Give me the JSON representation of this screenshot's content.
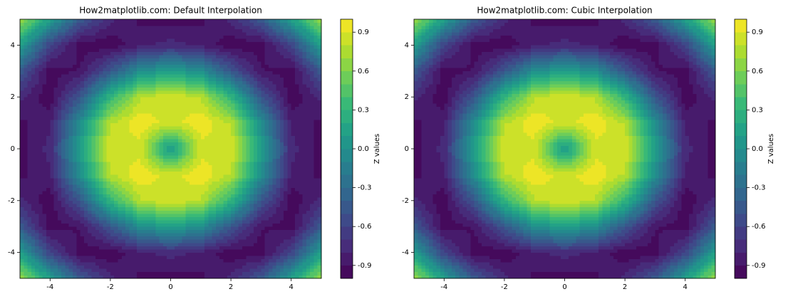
{
  "chart_data": [
    {
      "type": "contour",
      "title": "How2matplotlib.com: Default Interpolation",
      "x": [
        -5,
        -4,
        -3,
        -2,
        -1,
        0,
        1,
        2,
        3,
        4,
        5
      ],
      "y": [
        -5,
        -4,
        -3,
        -2,
        -1,
        0,
        1,
        2,
        3,
        4,
        5
      ],
      "z": [
        [
          0.706,
          0.119,
          -0.436,
          -0.78,
          -0.926,
          -0.959,
          -0.926,
          -0.78,
          -0.436,
          0.119,
          0.706
        ],
        [
          0.119,
          -0.588,
          -0.959,
          -0.971,
          -0.83,
          -0.757,
          -0.83,
          -0.971,
          -0.959,
          -0.588,
          0.119
        ],
        [
          -0.436,
          -0.959,
          -0.89,
          -0.448,
          -0.021,
          0.141,
          -0.021,
          -0.448,
          -0.89,
          -0.959,
          -0.436
        ],
        [
          -0.78,
          -0.971,
          -0.448,
          0.308,
          0.787,
          0.909,
          0.787,
          0.308,
          -0.448,
          -0.971,
          -0.78
        ],
        [
          -0.926,
          -0.83,
          -0.021,
          0.787,
          0.988,
          0.841,
          0.988,
          0.787,
          -0.021,
          -0.83,
          -0.926
        ],
        [
          -0.959,
          -0.757,
          0.141,
          0.909,
          0.841,
          0,
          0.841,
          0.909,
          0.141,
          -0.757,
          -0.959
        ],
        [
          -0.926,
          -0.83,
          -0.021,
          0.787,
          0.988,
          0.841,
          0.988,
          0.787,
          -0.021,
          -0.83,
          -0.926
        ],
        [
          -0.78,
          -0.971,
          -0.448,
          0.308,
          0.787,
          0.909,
          0.787,
          0.308,
          -0.448,
          -0.971,
          -0.78
        ],
        [
          -0.436,
          -0.959,
          -0.89,
          -0.448,
          -0.021,
          0.141,
          -0.021,
          -0.448,
          -0.89,
          -0.959,
          -0.436
        ],
        [
          0.119,
          -0.588,
          -0.959,
          -0.971,
          -0.83,
          -0.757,
          -0.83,
          -0.971,
          -0.959,
          -0.588,
          0.119
        ],
        [
          0.706,
          0.119,
          -0.436,
          -0.78,
          -0.926,
          -0.959,
          -0.926,
          -0.78,
          -0.436,
          0.119,
          0.706
        ]
      ],
      "xlim": [
        -5,
        5
      ],
      "ylim": [
        -5,
        5
      ],
      "xticks": [
        -4,
        -2,
        0,
        2,
        4
      ],
      "yticks": [
        -4,
        -2,
        0,
        2,
        4
      ],
      "levels": [
        -1,
        -0.9,
        -0.8,
        -0.7,
        -0.6,
        -0.5,
        -0.4,
        -0.3,
        -0.2,
        -0.1,
        0,
        0.1,
        0.2,
        0.3,
        0.4,
        0.5,
        0.6,
        0.7,
        0.8,
        0.9,
        1
      ],
      "cmap": [
        "#440154",
        "#482878",
        "#3e4989",
        "#31688e",
        "#26828e",
        "#1f9e89",
        "#35b779",
        "#6ece58",
        "#b5de2b",
        "#fde725"
      ],
      "colorbar_label": "Z values",
      "colorbar_ticks": [
        -0.9,
        -0.6,
        -0.3,
        {
          "value": 0,
          "label": "0.0"
        },
        0.3,
        0.6,
        0.9
      ]
    },
    {
      "type": "contour",
      "title": "How2matplotlib.com: Cubic Interpolation",
      "x": [
        -5,
        -4,
        -3,
        -2,
        -1,
        0,
        1,
        2,
        3,
        4,
        5
      ],
      "y": [
        -5,
        -4,
        -3,
        -2,
        -1,
        0,
        1,
        2,
        3,
        4,
        5
      ],
      "z": [
        [
          0.706,
          0.119,
          -0.436,
          -0.78,
          -0.926,
          -0.959,
          -0.926,
          -0.78,
          -0.436,
          0.119,
          0.706
        ],
        [
          0.119,
          -0.588,
          -0.959,
          -0.971,
          -0.83,
          -0.757,
          -0.83,
          -0.971,
          -0.959,
          -0.588,
          0.119
        ],
        [
          -0.436,
          -0.959,
          -0.89,
          -0.448,
          -0.021,
          0.141,
          -0.021,
          -0.448,
          -0.89,
          -0.959,
          -0.436
        ],
        [
          -0.78,
          -0.971,
          -0.448,
          0.308,
          0.787,
          0.909,
          0.787,
          0.308,
          -0.448,
          -0.971,
          -0.78
        ],
        [
          -0.926,
          -0.83,
          -0.021,
          0.787,
          0.988,
          0.841,
          0.988,
          0.787,
          -0.021,
          -0.83,
          -0.926
        ],
        [
          -0.959,
          -0.757,
          0.141,
          0.909,
          0.841,
          0,
          0.841,
          0.909,
          0.141,
          -0.757,
          -0.959
        ],
        [
          -0.926,
          -0.83,
          -0.021,
          0.787,
          0.988,
          0.841,
          0.988,
          0.787,
          -0.021,
          -0.83,
          -0.926
        ],
        [
          -0.78,
          -0.971,
          -0.448,
          0.308,
          0.787,
          0.909,
          0.787,
          0.308,
          -0.448,
          -0.971,
          -0.78
        ],
        [
          -0.436,
          -0.959,
          -0.89,
          -0.448,
          -0.021,
          0.141,
          -0.021,
          -0.448,
          -0.89,
          -0.959,
          -0.436
        ],
        [
          0.119,
          -0.588,
          -0.959,
          -0.971,
          -0.83,
          -0.757,
          -0.83,
          -0.971,
          -0.959,
          -0.588,
          0.119
        ],
        [
          0.706,
          0.119,
          -0.436,
          -0.78,
          -0.926,
          -0.959,
          -0.926,
          -0.78,
          -0.436,
          0.119,
          0.706
        ]
      ],
      "xlim": [
        -5,
        5
      ],
      "ylim": [
        -5,
        5
      ],
      "xticks": [
        -4,
        -2,
        0,
        2,
        4
      ],
      "yticks": [
        -4,
        -2,
        0,
        2,
        4
      ],
      "levels": [
        -1,
        -0.9,
        -0.8,
        -0.7,
        -0.6,
        -0.5,
        -0.4,
        -0.3,
        -0.2,
        -0.1,
        0,
        0.1,
        0.2,
        0.3,
        0.4,
        0.5,
        0.6,
        0.7,
        0.8,
        0.9,
        1
      ],
      "cmap": [
        "#440154",
        "#482878",
        "#3e4989",
        "#31688e",
        "#26828e",
        "#1f9e89",
        "#35b779",
        "#6ece58",
        "#b5de2b",
        "#fde725"
      ],
      "colorbar_label": "Z values",
      "colorbar_ticks": [
        -0.9,
        -0.6,
        -0.3,
        {
          "value": 0,
          "label": "0.0"
        },
        0.3,
        0.6,
        0.9
      ]
    }
  ]
}
